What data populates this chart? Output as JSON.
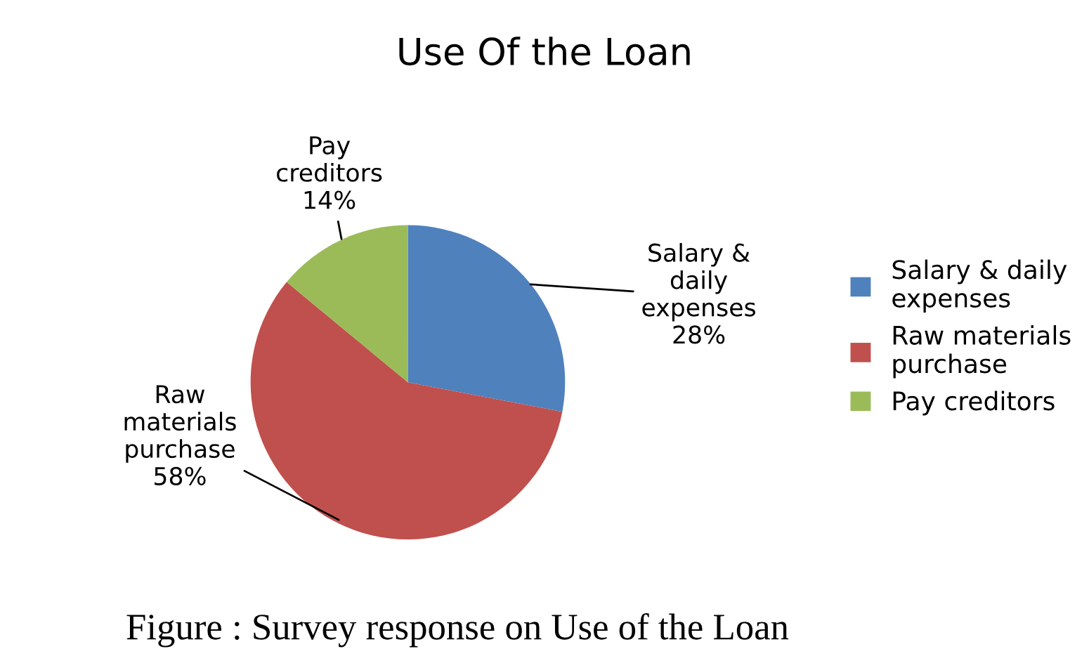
{
  "chart_data": {
    "type": "pie",
    "title": "Use Of the Loan",
    "categories": [
      "Salary & daily expenses",
      "Raw materials purchase",
      "Pay creditors"
    ],
    "values": [
      28,
      58,
      14
    ],
    "value_labels": [
      "28%",
      "58%",
      "14%"
    ],
    "colors": [
      "#4f81bd",
      "#c0504d",
      "#9bbb59"
    ],
    "legend": "right",
    "annotations": [
      "Figure : Survey response on Use of the Loan"
    ]
  }
}
